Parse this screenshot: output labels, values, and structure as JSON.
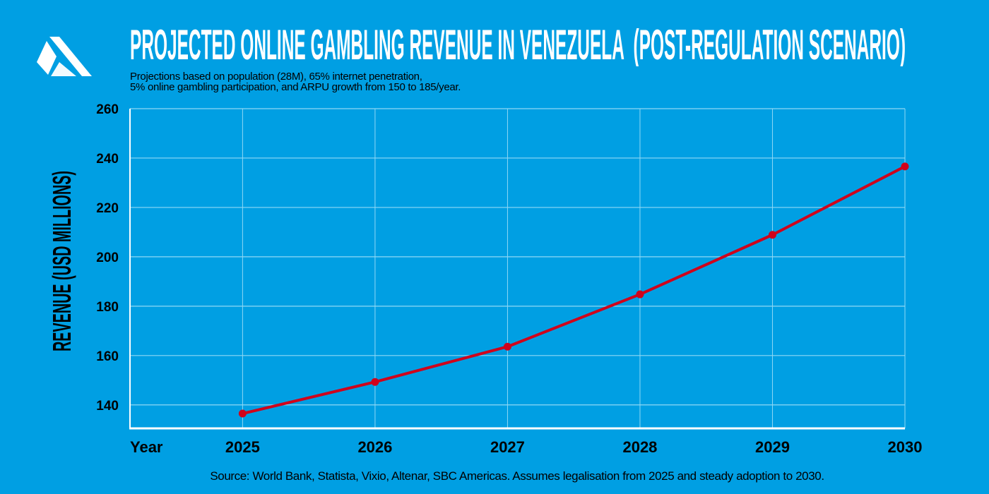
{
  "title": "PROJECTED ONLINE GAMBLING REVENUE IN VENEZUELA  (POST-REGULATION SCENARIO)",
  "subtitle": "Projections based on population (28M), 65% internet penetration,\n5% online gambling participation, and ARPU growth from 150 to 185/year.",
  "source": "Source: World Bank, Statista, Vixio, Altenar, SBC Americas. Assumes legalisation from 2025 and steady adoption to 2030.",
  "logo": "triangle-logo",
  "colors": {
    "background": "#009fe3",
    "line": "#d0021b",
    "grid": "#8fd8f5",
    "axis": "#ffffff"
  },
  "chart_data": {
    "type": "line",
    "title": "PROJECTED ONLINE GAMBLING REVENUE IN VENEZUELA  (POST-REGULATION SCENARIO)",
    "xlabel": "Year",
    "ylabel": "REVENUE (USD MILLIONS)",
    "x": [
      2025,
      2026,
      2027,
      2028,
      2029,
      2030
    ],
    "x_tick_labels": [
      "2025",
      "2026",
      "2027",
      "2028",
      "2029",
      "2030"
    ],
    "series": [
      {
        "values": [
          136.5,
          149.3,
          163.6,
          184.8,
          208.9,
          236.6
        ]
      }
    ],
    "y_ticks": [
      140,
      160,
      180,
      200,
      220,
      240,
      260
    ],
    "y_tick_labels": [
      "140",
      "160",
      "180",
      "200",
      "220",
      "240",
      "260"
    ],
    "ylim": [
      130.5,
      260
    ],
    "xlim": [
      2024.15,
      2030
    ],
    "grid": true,
    "markers": true
  }
}
